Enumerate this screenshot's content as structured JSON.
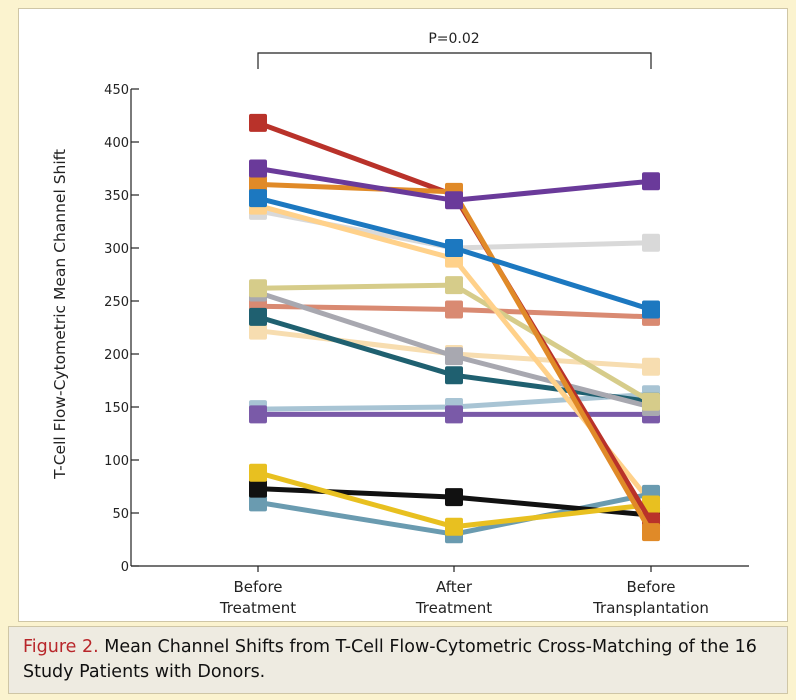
{
  "chart_data": {
    "type": "line",
    "ylabel": "T-Cell Flow-Cytometric Mean Channel Shift",
    "ylim": [
      0,
      450
    ],
    "yticks": [
      0,
      50,
      100,
      150,
      200,
      250,
      300,
      350,
      400,
      450
    ],
    "categories": [
      {
        "line1": "Before",
        "line2": "Treatment"
      },
      {
        "line1": "After",
        "line2": "Treatment"
      },
      {
        "line1": "Before",
        "line2": "Transplantation"
      }
    ],
    "annotation": "P=0.02",
    "grid": false,
    "series": [
      {
        "color": "#f7ddb0",
        "values": [
          222,
          200,
          188
        ]
      },
      {
        "color": "#d98a72",
        "values": [
          245,
          242,
          235
        ]
      },
      {
        "color": "#d9d9d9",
        "values": [
          335,
          300,
          305
        ]
      },
      {
        "color": "#a8c4d4",
        "values": [
          148,
          150,
          162
        ]
      },
      {
        "color": "#7a5aa8",
        "values": [
          143,
          143,
          143
        ]
      },
      {
        "color": "#1f6070",
        "values": [
          235,
          180,
          155
        ]
      },
      {
        "color": "#a8a8b0",
        "values": [
          258,
          198,
          150
        ]
      },
      {
        "color": "#d6cc8a",
        "values": [
          262,
          265,
          155
        ]
      },
      {
        "color": "#ffd18a",
        "values": [
          340,
          290,
          60
        ]
      },
      {
        "color": "#6a9bb0",
        "values": [
          60,
          30,
          68
        ]
      },
      {
        "color": "#111111",
        "values": [
          73,
          65,
          48
        ]
      },
      {
        "color": "#e8c020",
        "values": [
          88,
          37,
          58
        ]
      },
      {
        "color": "#b9322a",
        "values": [
          418,
          350,
          42
        ]
      },
      {
        "color": "#e08a28",
        "values": [
          360,
          353,
          32
        ]
      },
      {
        "color": "#6a3a9a",
        "values": [
          375,
          345,
          363
        ]
      },
      {
        "color": "#1c78c0",
        "values": [
          347,
          300,
          242
        ]
      }
    ]
  },
  "caption": {
    "label": "Figure 2.",
    "text": " Mean Channel Shifts from T-Cell Flow-Cytometric Cross-Matching of the 16 Study Patients with Donors."
  }
}
